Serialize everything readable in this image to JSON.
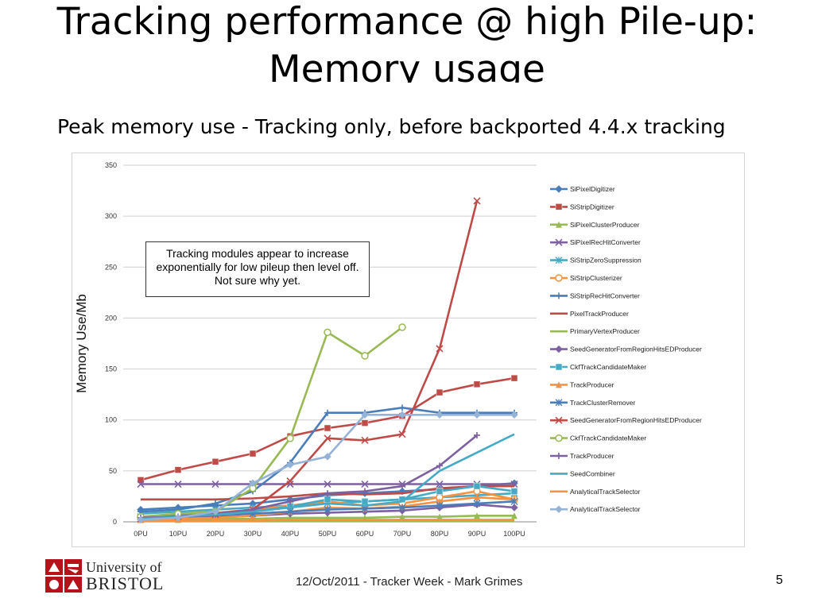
{
  "slide": {
    "title_line1": "Tracking performance @ high Pile-up:",
    "title_line2": "Memory usage",
    "subtitle": "Peak memory use - Tracking only, before backported 4.4.x tracking",
    "annotation": "Tracking modules appear to increase exponentially for low pileup then level off.  Not sure why yet.",
    "footer": "12/Oct/2011 - Tracker Week - Mark Grimes",
    "page_number": "5",
    "logo_line1": "University of",
    "logo_line2": "BRISTOL",
    "logo_colors": {
      "red": "#b5121b"
    }
  },
  "chart_data": {
    "type": "line",
    "title": "",
    "xlabel": "",
    "ylabel": "Memory Use/Mb",
    "categories": [
      "0PU",
      "10PU",
      "20PU",
      "30PU",
      "40PU",
      "50PU",
      "60PU",
      "70PU",
      "80PU",
      "90PU",
      "100PU"
    ],
    "ylim": [
      0,
      350
    ],
    "yticks": [
      0,
      50,
      100,
      150,
      200,
      250,
      300,
      350
    ],
    "grid": true,
    "legend_position": "right",
    "series": [
      {
        "name": "SiPixelDigitizer",
        "color": "#4a7ebb",
        "marker": "diamond",
        "values": [
          12,
          14,
          16,
          18,
          22,
          26,
          28,
          30,
          32,
          35,
          38
        ]
      },
      {
        "name": "SiStripDigitizer",
        "color": "#be4b48",
        "marker": "square",
        "values": [
          41,
          51,
          59,
          67,
          84,
          92,
          97,
          104,
          127,
          135,
          141
        ]
      },
      {
        "name": "SiPixelClusterProducer",
        "color": "#98b954",
        "marker": "triangle",
        "values": [
          2,
          2,
          3,
          3,
          4,
          4,
          4,
          5,
          5,
          6,
          6
        ]
      },
      {
        "name": "SiPixelRecHitConverter",
        "color": "#7d60a0",
        "marker": "x",
        "values": [
          37,
          37,
          37,
          37,
          37,
          37,
          37,
          37,
          37,
          37,
          37
        ]
      },
      {
        "name": "SiStripZeroSuppression",
        "color": "#46aac5",
        "marker": "asterisk",
        "values": [
          8,
          10,
          12,
          14,
          16,
          18,
          20,
          22,
          24,
          26,
          28
        ]
      },
      {
        "name": "SiStripClusterizer",
        "color": "#f69240",
        "marker": "circle",
        "values": [
          5,
          7,
          9,
          12,
          16,
          20,
          16,
          18,
          24,
          30,
          22
        ]
      },
      {
        "name": "SiStripRecHitConverter",
        "color": "#4a7ebb",
        "marker": "plus",
        "values": [
          10,
          12,
          18,
          30,
          58,
          107,
          107,
          112,
          107,
          107,
          107
        ]
      },
      {
        "name": "PixelTrackProducer",
        "color": "#be4b48",
        "marker": "none",
        "values": [
          22,
          22,
          22,
          23,
          25,
          28,
          27,
          28,
          33,
          35,
          35
        ]
      },
      {
        "name": "PrimaryVertexProducer",
        "color": "#98b954",
        "marker": "none",
        "values": [
          1,
          1,
          1,
          1,
          1,
          1,
          1,
          1,
          1,
          1,
          1
        ]
      },
      {
        "name": "SeedGeneratorFromRegionHitsEDProducer",
        "color": "#7d60a0",
        "marker": "diamond",
        "values": [
          3,
          4,
          5,
          6,
          8,
          9,
          10,
          11,
          14,
          17,
          14
        ]
      },
      {
        "name": "CkfTrackCandidateMaker",
        "color": "#46aac5",
        "marker": "square",
        "values": [
          5,
          6,
          8,
          10,
          15,
          22,
          20,
          22,
          30,
          35,
          30
        ]
      },
      {
        "name": "TrackProducer",
        "color": "#f69240",
        "marker": "triangle",
        "values": [
          2,
          3,
          4,
          6,
          10,
          14,
          13,
          15,
          20,
          24,
          22
        ]
      },
      {
        "name": "TrackClusterRemover",
        "color": "#4a7ebb",
        "marker": "asterisk",
        "values": [
          5,
          6,
          7,
          8,
          10,
          12,
          13,
          14,
          16,
          18,
          20
        ]
      },
      {
        "name": "SeedGeneratorFromRegionHitsEDProducer",
        "color": "#be4b48",
        "marker": "x",
        "values": [
          3,
          5,
          8,
          12,
          40,
          82,
          80,
          86,
          170,
          315,
          null
        ]
      },
      {
        "name": "CkfTrackCandidateMaker",
        "color": "#98b954",
        "marker": "circle",
        "values": [
          5,
          8,
          10,
          33,
          82,
          186,
          163,
          191,
          null,
          null,
          null
        ]
      },
      {
        "name": "TrackProducer",
        "color": "#7d60a0",
        "marker": "plus",
        "values": [
          4,
          5,
          8,
          12,
          20,
          28,
          30,
          35,
          55,
          85,
          null
        ]
      },
      {
        "name": "SeedCombiner",
        "color": "#46aac5",
        "marker": "none",
        "values": [
          3,
          5,
          7,
          10,
          14,
          18,
          16,
          20,
          50,
          68,
          86
        ]
      },
      {
        "name": "AnalyticalTrackSelector",
        "color": "#f69240",
        "marker": "none",
        "values": [
          1,
          1,
          1,
          1,
          2,
          2,
          2,
          2,
          2,
          2,
          2
        ]
      },
      {
        "name": "AnalyticalTrackSelector",
        "color": "#95b3d7",
        "marker": "diamond",
        "values": [
          2,
          4,
          10,
          38,
          56,
          64,
          105,
          105,
          105,
          105,
          105
        ]
      }
    ]
  }
}
